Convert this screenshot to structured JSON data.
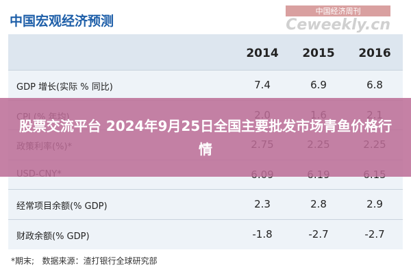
{
  "header": {
    "title": "中国宏观经济预测",
    "logo_top": "中国经济周刊",
    "logo_bottom": "Ceweekly.cn"
  },
  "table": {
    "columns": [
      "2014",
      "2015",
      "2016"
    ],
    "rows": [
      [
        "GDP 增长(实际 % 同比)",
        "7.4",
        "6.9",
        "6.8"
      ],
      [
        "CPI (% 年均)",
        "2.0",
        "1.6",
        "2.1"
      ],
      [
        "政策利率(%)*",
        "2.75",
        "2.25",
        "2.25"
      ],
      [
        "USD-CNY*",
        "6.09",
        "6.19",
        "6.15"
      ],
      [
        "经常项目余额(% GDP)",
        "2.3",
        "2.8",
        "2.9"
      ],
      [
        "财政余额(% GDP)",
        "-1.8",
        "-2.7",
        "-2.7"
      ]
    ]
  },
  "footnote": "*期末;   数据来源：渣打银行全球研究部",
  "banner": "股票交流平台 2024年9月25日全国主要批发市场青鱼价格行情"
}
